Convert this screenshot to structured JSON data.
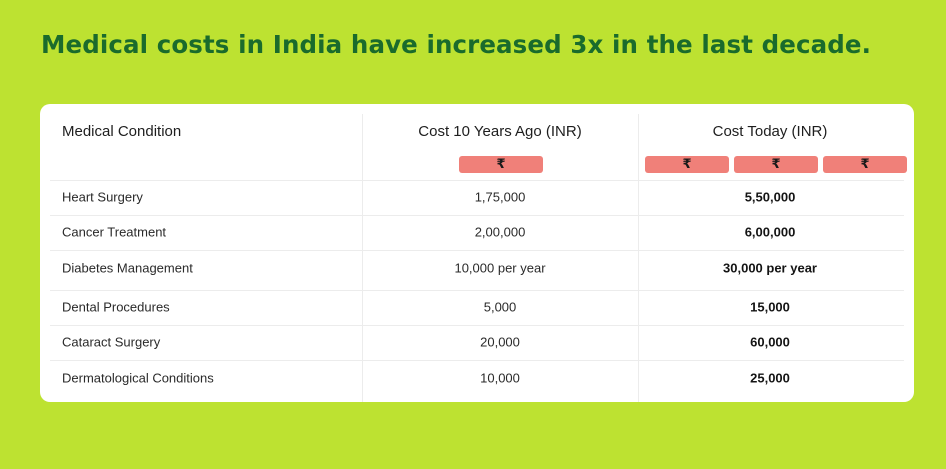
{
  "headline": "Medical costs in India have increased 3x in the last decade.",
  "table": {
    "headers": {
      "condition": "Medical Condition",
      "cost_past": "Cost 10 Years Ago (INR)",
      "cost_today": "Cost Today (INR)"
    },
    "rupee_symbol": "₹",
    "cost_past_rupee_count": 1,
    "cost_today_rupee_count": 3,
    "rows": [
      {
        "condition": "Heart Surgery",
        "cost_past": "1,75,000",
        "cost_today": "5,50,000"
      },
      {
        "condition": "Cancer Treatment",
        "cost_past": "2,00,000",
        "cost_today": "6,00,000"
      },
      {
        "condition": "Diabetes Management",
        "cost_past": "10,000 per year",
        "cost_today": "30,000 per year"
      },
      {
        "condition": "Dental Procedures",
        "cost_past": "5,000",
        "cost_today": "15,000"
      },
      {
        "condition": "Cataract Surgery",
        "cost_past": "20,000",
        "cost_today": "60,000"
      },
      {
        "condition": "Dermatological Conditions",
        "cost_past": "10,000",
        "cost_today": "25,000"
      }
    ]
  },
  "colors": {
    "background": "#bde231",
    "headline": "#1a6b2c",
    "card": "#ffffff",
    "rupee_pill": "#f08079"
  }
}
